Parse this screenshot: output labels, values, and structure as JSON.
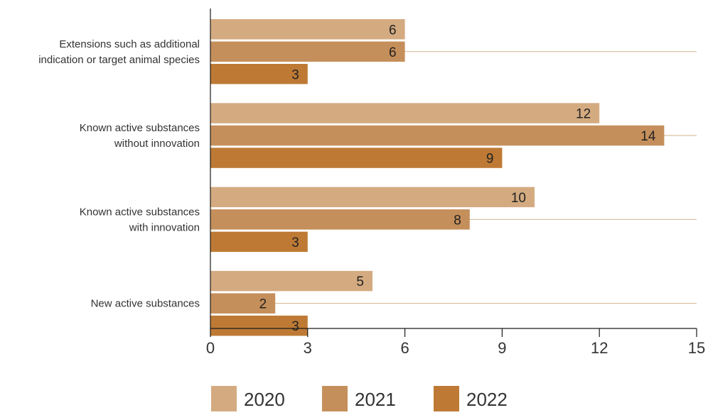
{
  "chart_data": {
    "type": "bar",
    "orientation": "horizontal",
    "title": "",
    "xlabel": "",
    "ylabel": "",
    "categories": [
      [
        "Extensions such as additional",
        "indication or target animal species"
      ],
      [
        "Known active substances",
        "without innovation"
      ],
      [
        "Known active substances",
        "with innovation"
      ],
      [
        "New active substances"
      ]
    ],
    "series": [
      {
        "name": "2020",
        "color": "#d4ab80",
        "values": [
          6,
          12,
          10,
          5
        ]
      },
      {
        "name": "2021",
        "color": "#c58f5b",
        "values": [
          6,
          14,
          8,
          2
        ]
      },
      {
        "name": "2022",
        "color": "#be7a34",
        "values": [
          3,
          9,
          3,
          3
        ]
      }
    ],
    "xlim": [
      0,
      15
    ],
    "xticks": [
      0,
      3,
      6,
      9,
      12,
      15
    ],
    "grid": "horizontal-category-lines",
    "legend": "bottom-center",
    "value_labels": true
  }
}
